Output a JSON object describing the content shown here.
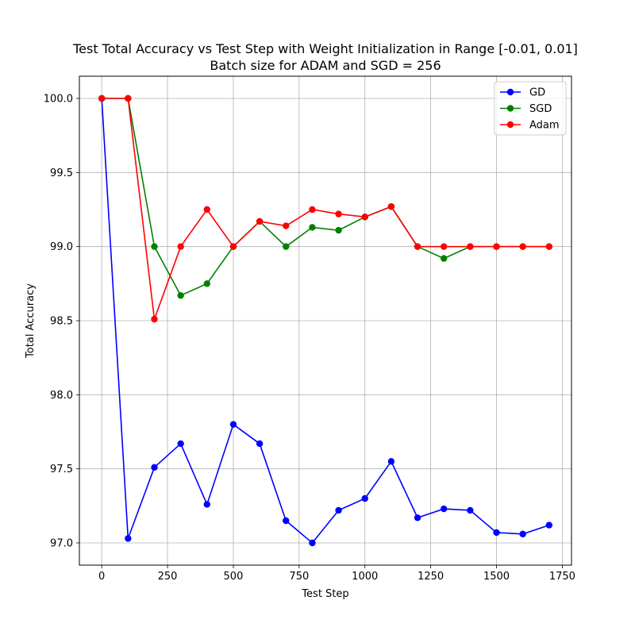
{
  "chart_data": {
    "type": "line",
    "title": [
      "Test Total Accuracy vs Test Step with Weight Initialization in Range [-0.01, 0.01]",
      "Batch size for ADAM and SGD = 256"
    ],
    "xlabel": "Test Step",
    "ylabel": "Total Accuracy",
    "xlim": [
      -85,
      1785
    ],
    "ylim": [
      96.85,
      100.15
    ],
    "x_ticks": [
      0,
      250,
      500,
      750,
      1000,
      1250,
      1500,
      1750
    ],
    "y_ticks": [
      97.0,
      97.5,
      98.0,
      98.5,
      99.0,
      99.5,
      100.0
    ],
    "x_tick_labels": [
      "0",
      "250",
      "500",
      "750",
      "1000",
      "1250",
      "1500",
      "1750"
    ],
    "y_tick_labels": [
      "97.0",
      "97.5",
      "98.0",
      "98.5",
      "99.0",
      "99.5",
      "100.0"
    ],
    "grid": true,
    "legend_position": "top-right",
    "x": [
      0,
      100,
      200,
      300,
      400,
      500,
      600,
      700,
      800,
      900,
      1000,
      1100,
      1200,
      1300,
      1400,
      1500,
      1600,
      1700
    ],
    "series": [
      {
        "name": "GD",
        "color": "#0000ff",
        "values": [
          100.0,
          97.03,
          97.51,
          97.67,
          97.26,
          97.8,
          97.67,
          97.15,
          97.0,
          97.22,
          97.3,
          97.55,
          97.17,
          97.23,
          97.22,
          97.07,
          97.06,
          97.12
        ]
      },
      {
        "name": "SGD",
        "color": "#008000",
        "values": [
          100.0,
          100.0,
          99.0,
          98.67,
          98.75,
          99.0,
          99.17,
          99.0,
          99.13,
          99.11,
          99.2,
          99.27,
          99.0,
          98.92,
          99.0,
          99.0,
          99.0,
          99.0
        ]
      },
      {
        "name": "Adam",
        "color": "#ff0000",
        "values": [
          100.0,
          100.0,
          98.51,
          99.0,
          99.25,
          99.0,
          99.17,
          99.14,
          99.25,
          99.22,
          99.2,
          99.27,
          99.0,
          99.0,
          99.0,
          99.0,
          99.0,
          99.0
        ]
      }
    ]
  }
}
